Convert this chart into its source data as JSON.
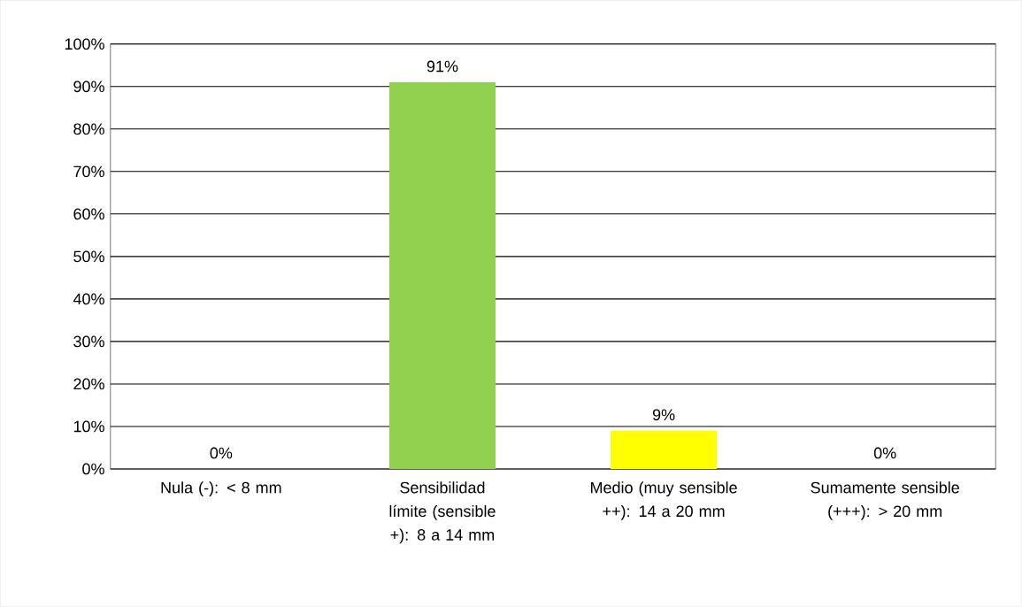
{
  "chart_data": {
    "type": "bar",
    "categories": [
      "Nula (-): < 8 mm",
      "Sensibilidad límite (sensible +): 8 a 14 mm",
      "Medio (muy sensible ++): 14 a 20 mm",
      "Sumamente sensible (+++): > 20 mm"
    ],
    "values": [
      0,
      91,
      9,
      0
    ],
    "colors": [
      "#92d050",
      "#92d050",
      "#ffff00",
      "#92d050"
    ],
    "value_labels": [
      "0%",
      "91%",
      "9%",
      "0%"
    ],
    "ylim": [
      0,
      100
    ],
    "yticks": [
      {
        "value": 0,
        "label": "0%"
      },
      {
        "value": 10,
        "label": "10%"
      },
      {
        "value": 20,
        "label": "20%"
      },
      {
        "value": 30,
        "label": "30%"
      },
      {
        "value": 40,
        "label": "40%"
      },
      {
        "value": 50,
        "label": "50%"
      },
      {
        "value": 60,
        "label": "60%"
      },
      {
        "value": 70,
        "label": "70%"
      },
      {
        "value": 80,
        "label": "80%"
      },
      {
        "value": 90,
        "label": "90%"
      },
      {
        "value": 100,
        "label": "100%"
      }
    ],
    "grid": "y"
  }
}
